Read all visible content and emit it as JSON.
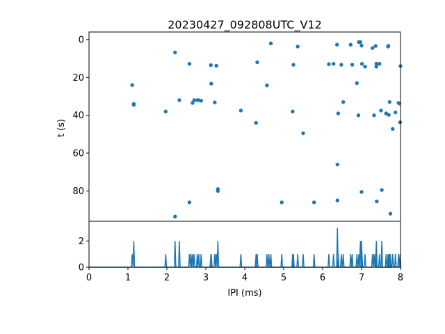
{
  "chart_data": [
    {
      "type": "scatter",
      "title": "20230427_092808UTC_V12",
      "ylabel": "t (s)",
      "xlim": [
        0,
        8
      ],
      "ylim": [
        96,
        -4
      ],
      "y_inverted": true,
      "yticks": [
        0,
        20,
        40,
        60,
        80
      ],
      "color": "#1f77b4",
      "grid": false,
      "points": [
        [
          1.11,
          24
        ],
        [
          1.15,
          34
        ],
        [
          1.15,
          34.5
        ],
        [
          1.97,
          38
        ],
        [
          2.21,
          6.8
        ],
        [
          2.21,
          93.5
        ],
        [
          2.32,
          32
        ],
        [
          2.58,
          12.8
        ],
        [
          2.58,
          86
        ],
        [
          2.66,
          33.5
        ],
        [
          2.7,
          32
        ],
        [
          2.78,
          32
        ],
        [
          2.82,
          32
        ],
        [
          2.88,
          32.3
        ],
        [
          3.13,
          13.5
        ],
        [
          3.14,
          23.3
        ],
        [
          3.23,
          33.2
        ],
        [
          3.27,
          13.8
        ],
        [
          3.31,
          79
        ],
        [
          3.31,
          80
        ],
        [
          3.9,
          37.5
        ],
        [
          4.29,
          44
        ],
        [
          4.32,
          12
        ],
        [
          4.57,
          24.2
        ],
        [
          4.67,
          2
        ],
        [
          4.95,
          86
        ],
        [
          5.23,
          38
        ],
        [
          5.25,
          13.3
        ],
        [
          5.36,
          3.7
        ],
        [
          5.5,
          49.5
        ],
        [
          5.78,
          86
        ],
        [
          6.16,
          13
        ],
        [
          6.28,
          12.8
        ],
        [
          6.37,
          2.7
        ],
        [
          6.38,
          85
        ],
        [
          6.38,
          66
        ],
        [
          6.4,
          39
        ],
        [
          6.48,
          13.3
        ],
        [
          6.53,
          33
        ],
        [
          6.72,
          2.7
        ],
        [
          6.76,
          13.3
        ],
        [
          6.88,
          23
        ],
        [
          6.92,
          40
        ],
        [
          6.93,
          1.3
        ],
        [
          6.97,
          1.3
        ],
        [
          7.0,
          3.2
        ],
        [
          7.01,
          12.8
        ],
        [
          7.0,
          80.5
        ],
        [
          7.09,
          14.3
        ],
        [
          7.28,
          4.5
        ],
        [
          7.32,
          40
        ],
        [
          7.36,
          3.4
        ],
        [
          7.38,
          14.3
        ],
        [
          7.38,
          12.7
        ],
        [
          7.39,
          85.5
        ],
        [
          7.46,
          12.8
        ],
        [
          7.5,
          37.5
        ],
        [
          7.52,
          79.5
        ],
        [
          7.63,
          39
        ],
        [
          7.68,
          3.7
        ],
        [
          7.69,
          3.3
        ],
        [
          7.7,
          39.8
        ],
        [
          7.72,
          33
        ],
        [
          7.74,
          92
        ],
        [
          7.8,
          47.2
        ],
        [
          7.87,
          38.5
        ],
        [
          7.95,
          33.5
        ],
        [
          7.97,
          33.8
        ],
        [
          7.99,
          43.7
        ],
        [
          8.0,
          14
        ]
      ]
    },
    {
      "type": "line",
      "xlabel": "IPI (ms)",
      "xlim": [
        0,
        8
      ],
      "ylim": [
        0,
        3.5
      ],
      "xticks": [
        0,
        1,
        2,
        3,
        4,
        5,
        6,
        7,
        8
      ],
      "yticks": [
        0,
        2
      ],
      "color": "#1f77b4",
      "grid": false,
      "peaks": [
        [
          1.11,
          1
        ],
        [
          1.15,
          2
        ],
        [
          1.97,
          1
        ],
        [
          2.21,
          2
        ],
        [
          2.32,
          2
        ],
        [
          2.58,
          1
        ],
        [
          2.62,
          1
        ],
        [
          2.66,
          1
        ],
        [
          2.7,
          1
        ],
        [
          2.78,
          1
        ],
        [
          2.82,
          1
        ],
        [
          2.88,
          1
        ],
        [
          3.13,
          1
        ],
        [
          3.14,
          1
        ],
        [
          3.23,
          1
        ],
        [
          3.27,
          1
        ],
        [
          3.31,
          2
        ],
        [
          3.9,
          1
        ],
        [
          4.29,
          1
        ],
        [
          4.32,
          1
        ],
        [
          4.57,
          1
        ],
        [
          4.62,
          1
        ],
        [
          4.67,
          1
        ],
        [
          4.95,
          1
        ],
        [
          5.23,
          1
        ],
        [
          5.25,
          1
        ],
        [
          5.36,
          1
        ],
        [
          5.5,
          1
        ],
        [
          5.78,
          1
        ],
        [
          6.16,
          1
        ],
        [
          6.28,
          1
        ],
        [
          6.38,
          3
        ],
        [
          6.4,
          1
        ],
        [
          6.48,
          1
        ],
        [
          6.53,
          1
        ],
        [
          6.72,
          1
        ],
        [
          6.76,
          1
        ],
        [
          6.88,
          1
        ],
        [
          6.93,
          1
        ],
        [
          6.97,
          2
        ],
        [
          7.0,
          2
        ],
        [
          7.01,
          1
        ],
        [
          7.09,
          1
        ],
        [
          7.28,
          1
        ],
        [
          7.32,
          1
        ],
        [
          7.36,
          1
        ],
        [
          7.38,
          2
        ],
        [
          7.46,
          1
        ],
        [
          7.52,
          2
        ],
        [
          7.63,
          1
        ],
        [
          7.68,
          1
        ],
        [
          7.7,
          1
        ],
        [
          7.72,
          1
        ],
        [
          7.74,
          1
        ],
        [
          7.8,
          1
        ],
        [
          7.87,
          1
        ],
        [
          7.95,
          1
        ],
        [
          7.99,
          1
        ]
      ]
    }
  ]
}
